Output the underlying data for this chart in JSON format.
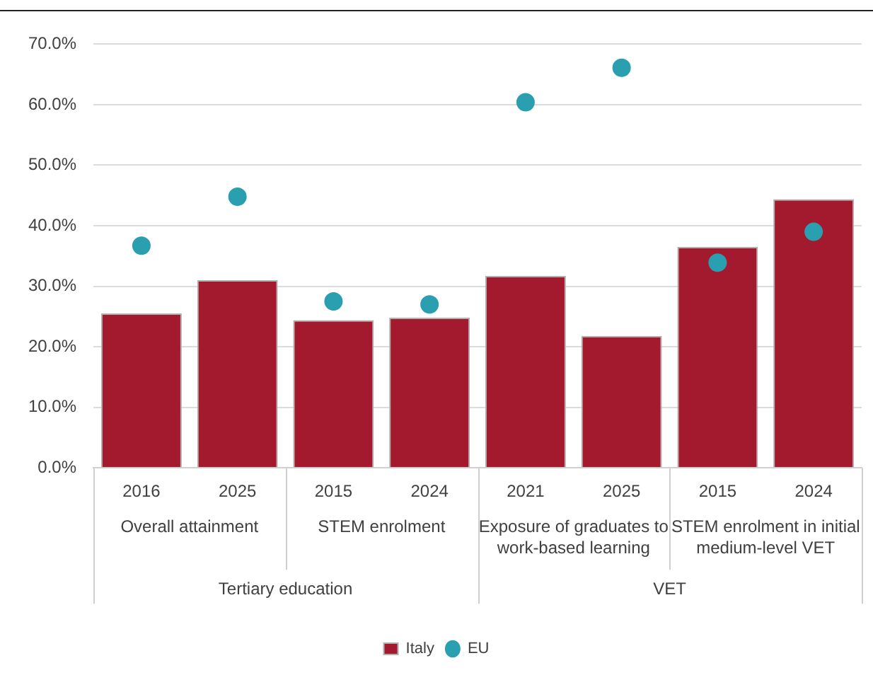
{
  "chart_data": {
    "type": "bar",
    "categories": [
      "2016",
      "2025",
      "2015",
      "2024",
      "2021",
      "2025",
      "2015",
      "2024"
    ],
    "series": [
      {
        "name": "Italy",
        "color": "#a31a2e",
        "values": [
          25.5,
          31.0,
          24.4,
          24.8,
          31.7,
          21.8,
          36.5,
          44.4
        ]
      },
      {
        "name": "EU",
        "type": "scatter",
        "color": "#2a9fb0",
        "values": [
          36.7,
          44.8,
          27.5,
          27.0,
          60.4,
          66.1,
          33.9,
          39.0
        ]
      }
    ],
    "ylim": [
      0,
      70
    ],
    "yticks": [
      {
        "value": 0,
        "label": "0.0%"
      },
      {
        "value": 10,
        "label": "10.0%"
      },
      {
        "value": 20,
        "label": "20.0%"
      },
      {
        "value": 30,
        "label": "30.0%"
      },
      {
        "value": 40,
        "label": "40.0%"
      },
      {
        "value": 50,
        "label": "50.0%"
      },
      {
        "value": 60,
        "label": "60.0%"
      },
      {
        "value": 70,
        "label": "70.0%"
      }
    ],
    "annotations": [
      "Overall attainment",
      "STEM enrolment",
      "Exposure of graduates to work-based learning",
      "STEM enrolment in initial medium-level VET",
      "Tertiary education",
      "VET"
    ],
    "grid": "y",
    "legend": "bottom",
    "marker": "circle"
  }
}
